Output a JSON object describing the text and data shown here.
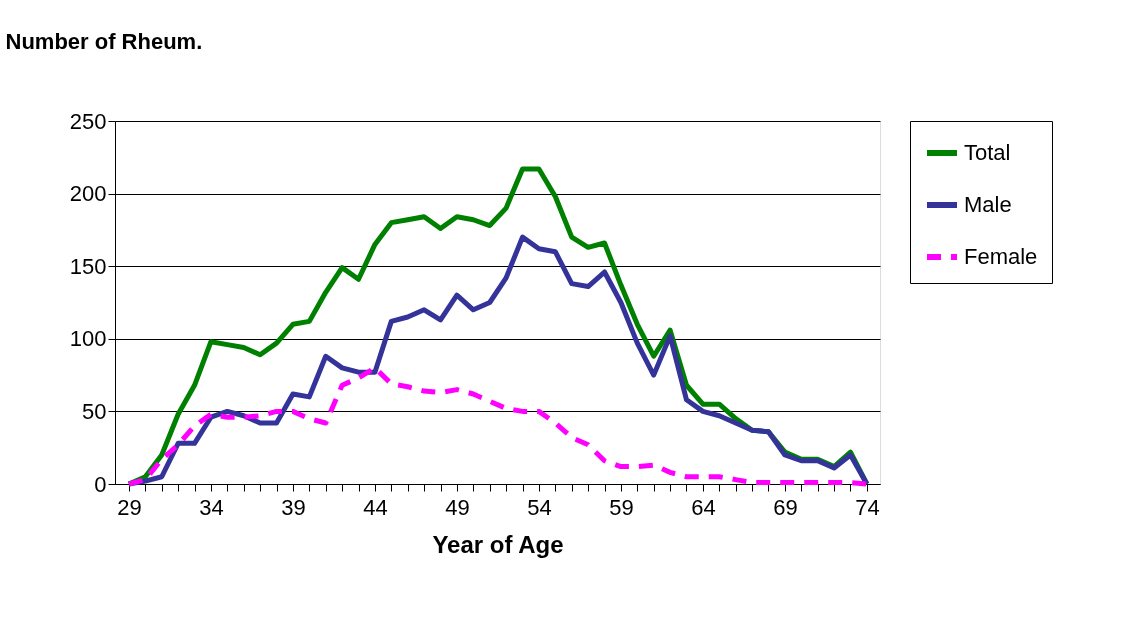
{
  "chart_data": {
    "type": "line",
    "xlabel": "Year of Age",
    "ylabel": "Number of Rheum.",
    "categories": [
      "29",
      null,
      null,
      null,
      null,
      "34",
      null,
      null,
      null,
      null,
      "39",
      null,
      null,
      null,
      null,
      "44",
      null,
      null,
      null,
      null,
      "49",
      null,
      null,
      null,
      null,
      "54",
      null,
      null,
      null,
      null,
      "59",
      null,
      null,
      null,
      null,
      "64",
      null,
      null,
      null,
      null,
      "69",
      null,
      null,
      null,
      null,
      "74"
    ],
    "series": [
      {
        "name": "Total",
        "color": "#008000",
        "line_style": "solid",
        "values": [
          0,
          5,
          20,
          48,
          68,
          98,
          96,
          94,
          89,
          97,
          110,
          112,
          132,
          149,
          141,
          165,
          180,
          182,
          184,
          176,
          184,
          182,
          178,
          190,
          217,
          217,
          198,
          170,
          163,
          166,
          137,
          110,
          88,
          106,
          68,
          55,
          55,
          45,
          37,
          36,
          22,
          17,
          17,
          12,
          22,
          0
        ]
      },
      {
        "name": "Male",
        "color": "#333399",
        "line_style": "solid",
        "values": [
          0,
          2,
          5,
          28,
          28,
          46,
          50,
          47,
          42,
          42,
          62,
          60,
          88,
          80,
          77,
          77,
          112,
          115,
          120,
          113,
          130,
          120,
          125,
          142,
          170,
          162,
          160,
          138,
          136,
          146,
          125,
          97,
          75,
          102,
          58,
          50,
          47,
          42,
          37,
          36,
          20,
          16,
          16,
          11,
          20,
          0
        ]
      },
      {
        "name": "Female",
        "color": "#ff00ff",
        "line_style": "dashed",
        "values": [
          0,
          3,
          17,
          27,
          40,
          48,
          46,
          46,
          47,
          50,
          50,
          45,
          42,
          68,
          73,
          80,
          69,
          67,
          64,
          63,
          65,
          62,
          57,
          52,
          50,
          50,
          42,
          32,
          27,
          16,
          12,
          12,
          13,
          8,
          5,
          5,
          5,
          3,
          1,
          1,
          1,
          1,
          1,
          1,
          1,
          0
        ]
      }
    ],
    "ylim": [
      0,
      250
    ],
    "yticks": [
      0,
      50,
      100,
      150,
      200,
      250
    ],
    "grid": "y",
    "legend": "right",
    "marker": "none"
  }
}
